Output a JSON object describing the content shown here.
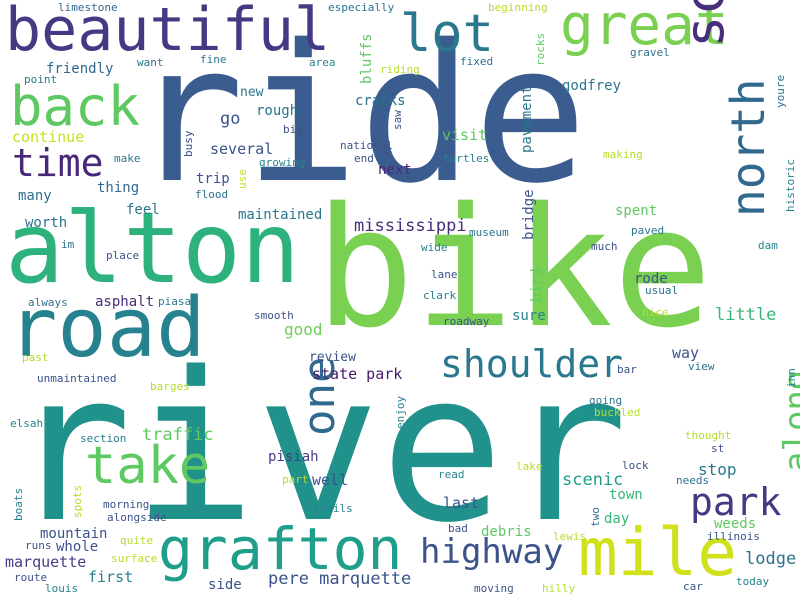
{
  "words": [
    {
      "text": "river",
      "color": "#21918c"
    },
    {
      "text": "ride",
      "color": "#3b5c8f"
    },
    {
      "text": "bike",
      "color": "#7ad151"
    },
    {
      "text": "alton",
      "color": "#2db27d"
    },
    {
      "text": "road",
      "color": "#26828e"
    },
    {
      "text": "beautiful",
      "color": "#443983"
    },
    {
      "text": "great",
      "color": "#7ad151"
    },
    {
      "text": "lot",
      "color": "#2a788e"
    },
    {
      "text": "back",
      "color": "#5ec962"
    },
    {
      "text": "scenery",
      "color": "#472d7b"
    },
    {
      "text": "north",
      "color": "#31688e"
    },
    {
      "text": "time",
      "color": "#482878"
    },
    {
      "text": "mile",
      "color": "#d0e11c"
    },
    {
      "text": "grafton",
      "color": "#1f9e89"
    },
    {
      "text": "take",
      "color": "#5ec962"
    },
    {
      "text": "one",
      "color": "#31688e"
    },
    {
      "text": "shoulder",
      "color": "#2a788e"
    },
    {
      "text": "park",
      "color": "#443983"
    },
    {
      "text": "along",
      "color": "#5ec962"
    },
    {
      "text": "highway",
      "color": "#3b528b"
    },
    {
      "text": "traffic",
      "color": "#5ec962"
    },
    {
      "text": "mississippi",
      "color": "#472d7b"
    },
    {
      "text": "pere marquette",
      "color": "#3b528b"
    },
    {
      "text": "scenic",
      "color": "#1f9e89"
    },
    {
      "text": "lodge",
      "color": "#2c728e"
    },
    {
      "text": "little",
      "color": "#35b779"
    },
    {
      "text": "go",
      "color": "#3b528b"
    },
    {
      "text": "good",
      "color": "#6ece58"
    },
    {
      "text": "several",
      "color": "#3b528b"
    },
    {
      "text": "stop",
      "color": "#2a788e"
    },
    {
      "text": "way",
      "color": "#3b528b"
    },
    {
      "text": "state park",
      "color": "#481a6c"
    },
    {
      "text": "first",
      "color": "#26828e"
    },
    {
      "text": "marquette",
      "color": "#433e85"
    },
    {
      "text": "well",
      "color": "#3b528b"
    },
    {
      "text": "pisiah",
      "color": "#433e85"
    },
    {
      "text": "maintained",
      "color": "#2a788e"
    },
    {
      "text": "many",
      "color": "#2c728e"
    },
    {
      "text": "visit",
      "color": "#5ec962"
    },
    {
      "text": "pavement",
      "color": "#2a788e"
    },
    {
      "text": "cracks",
      "color": "#2c728e"
    },
    {
      "text": "bluffs",
      "color": "#5ec962"
    },
    {
      "text": "continue",
      "color": "#c8e020"
    },
    {
      "text": "friendly",
      "color": "#31688e"
    },
    {
      "text": "last",
      "color": "#3b528b"
    },
    {
      "text": "mountain",
      "color": "#3b528b"
    },
    {
      "text": "whole",
      "color": "#3b528b"
    },
    {
      "text": "side",
      "color": "#3b528b"
    },
    {
      "text": "bridge",
      "color": "#3b528b"
    },
    {
      "text": "day",
      "color": "#35b779"
    },
    {
      "text": "sure",
      "color": "#26828e"
    },
    {
      "text": "rough",
      "color": "#2c728e"
    },
    {
      "text": "next",
      "color": "#482878"
    },
    {
      "text": "thing",
      "color": "#31688e"
    },
    {
      "text": "worth",
      "color": "#2c728e"
    },
    {
      "text": "feel",
      "color": "#2a788e"
    },
    {
      "text": "trip",
      "color": "#3b528b"
    },
    {
      "text": "review",
      "color": "#3b528b"
    },
    {
      "text": "asphalt",
      "color": "#472d7b"
    },
    {
      "text": "godfrey",
      "color": "#2a788e"
    },
    {
      "text": "weeds",
      "color": "#5ec962"
    },
    {
      "text": "town",
      "color": "#35b779"
    },
    {
      "text": "debris",
      "color": "#5ec962"
    },
    {
      "text": "rode",
      "color": "#3b528b"
    },
    {
      "text": "spent",
      "color": "#5ec962"
    },
    {
      "text": "bird",
      "color": "#5ec962"
    },
    {
      "text": "new",
      "color": "#2a788e"
    },
    {
      "text": "limestone",
      "color": "#31688e"
    },
    {
      "text": "especially",
      "color": "#2c728e"
    },
    {
      "text": "beginning",
      "color": "#b5de2b"
    },
    {
      "text": "want",
      "color": "#2c728e"
    },
    {
      "text": "fine",
      "color": "#2a788e"
    },
    {
      "text": "area",
      "color": "#26828e"
    },
    {
      "text": "riding",
      "color": "#b5de2b"
    },
    {
      "text": "fixed",
      "color": "#2c728e"
    },
    {
      "text": "rocks",
      "color": "#5ec962"
    },
    {
      "text": "gravel",
      "color": "#2c728e"
    },
    {
      "text": "point",
      "color": "#2a788e"
    },
    {
      "text": "youre",
      "color": "#2c728e"
    },
    {
      "text": "busy",
      "color": "#3b528b"
    },
    {
      "text": "big",
      "color": "#3b528b"
    },
    {
      "text": "national",
      "color": "#3b528b"
    },
    {
      "text": "saw",
      "color": "#3b528b"
    },
    {
      "text": "make",
      "color": "#2a788e"
    },
    {
      "text": "growing",
      "color": "#26828e"
    },
    {
      "text": "end",
      "color": "#3b528b"
    },
    {
      "text": "turtles",
      "color": "#26828e"
    },
    {
      "text": "making",
      "color": "#b5de2b"
    },
    {
      "text": "historic",
      "color": "#26828e"
    },
    {
      "text": "use",
      "color": "#c8e020"
    },
    {
      "text": "flood",
      "color": "#2c728e"
    },
    {
      "text": "im",
      "color": "#2c728e"
    },
    {
      "text": "place",
      "color": "#3b528b"
    },
    {
      "text": "wide",
      "color": "#26828e"
    },
    {
      "text": "museum",
      "color": "#2c728e"
    },
    {
      "text": "paved",
      "color": "#2c728e"
    },
    {
      "text": "dam",
      "color": "#26828e"
    },
    {
      "text": "much",
      "color": "#3b528b"
    },
    {
      "text": "lane",
      "color": "#3b528b"
    },
    {
      "text": "clark",
      "color": "#2a788e"
    },
    {
      "text": "usual",
      "color": "#2c728e"
    },
    {
      "text": "always",
      "color": "#2c728e"
    },
    {
      "text": "piasa",
      "color": "#2a788e"
    },
    {
      "text": "smooth",
      "color": "#3b528b"
    },
    {
      "text": "nice",
      "color": "#b5de2b"
    },
    {
      "text": "roadway",
      "color": "#3b528b"
    },
    {
      "text": "past",
      "color": "#b5de2b"
    },
    {
      "text": "unmaintained",
      "color": "#3b528b"
    },
    {
      "text": "barges",
      "color": "#b5de2b"
    },
    {
      "text": "bar",
      "color": "#3b528b"
    },
    {
      "text": "view",
      "color": "#2c728e"
    },
    {
      "text": "inn",
      "color": "#26828e"
    },
    {
      "text": "elsah",
      "color": "#26828e"
    },
    {
      "text": "enjoy",
      "color": "#26828e"
    },
    {
      "text": "going",
      "color": "#2c728e"
    },
    {
      "text": "buckled",
      "color": "#b5de2b"
    },
    {
      "text": "section",
      "color": "#26828e"
    },
    {
      "text": "thought",
      "color": "#b5de2b"
    },
    {
      "text": "st",
      "color": "#3b528b"
    },
    {
      "text": "read",
      "color": "#26828e"
    },
    {
      "text": "lake",
      "color": "#b5de2b"
    },
    {
      "text": "lock",
      "color": "#3b528b"
    },
    {
      "text": "part",
      "color": "#b5de2b"
    },
    {
      "text": "needs",
      "color": "#2c728e"
    },
    {
      "text": "boats",
      "color": "#26828e"
    },
    {
      "text": "spots",
      "color": "#b5de2b"
    },
    {
      "text": "morning",
      "color": "#3b528b"
    },
    {
      "text": "trails",
      "color": "#26828e"
    },
    {
      "text": "alongside",
      "color": "#3b528b"
    },
    {
      "text": "two",
      "color": "#2c728e"
    },
    {
      "text": "illinois",
      "color": "#3b528b"
    },
    {
      "text": "runs",
      "color": "#3b528b"
    },
    {
      "text": "quite",
      "color": "#b5de2b"
    },
    {
      "text": "bad",
      "color": "#3b528b"
    },
    {
      "text": "lewis",
      "color": "#b5de2b"
    },
    {
      "text": "surface",
      "color": "#b5de2b"
    },
    {
      "text": "route",
      "color": "#3b528b"
    },
    {
      "text": "louis",
      "color": "#26828e"
    },
    {
      "text": "moving",
      "color": "#3b528b"
    },
    {
      "text": "hilly",
      "color": "#b5de2b"
    },
    {
      "text": "car",
      "color": "#3b528b"
    },
    {
      "text": "today",
      "color": "#26828e"
    }
  ]
}
